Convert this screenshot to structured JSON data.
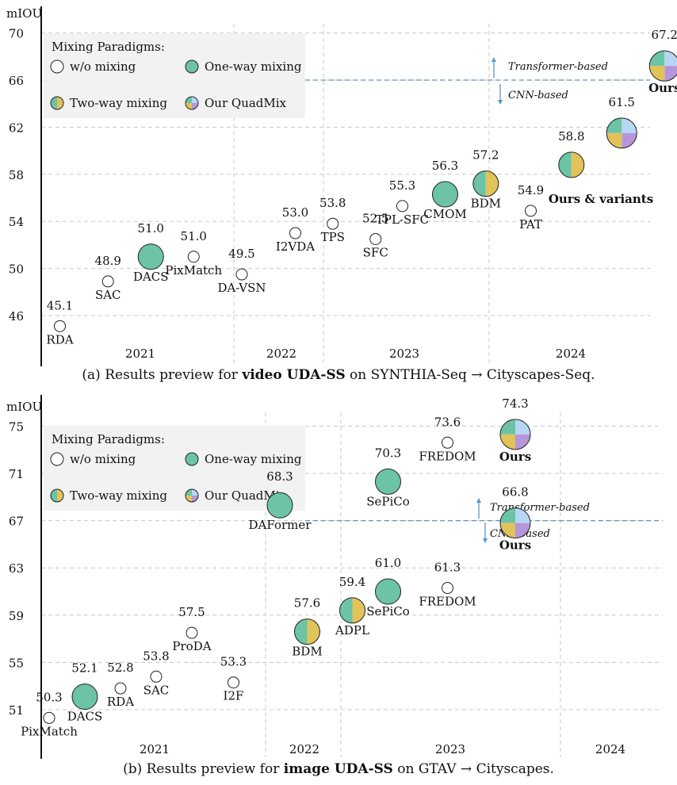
{
  "chart_data": [
    {
      "type": "scatter",
      "ylabel": "mIOU",
      "ylim": [
        42,
        72
      ],
      "y_ticks": [
        46,
        50,
        54,
        58,
        62,
        66,
        70
      ],
      "years": [
        "2021",
        "2022",
        "2023",
        "2024"
      ],
      "legend": {
        "title": "Mixing Paradigms:",
        "items": [
          {
            "kind": "none",
            "label": "w/o mixing"
          },
          {
            "kind": "one",
            "label": "One-way mixing"
          },
          {
            "kind": "two",
            "label": "Two-way mixing"
          },
          {
            "kind": "quad",
            "label": "Our QuadMix"
          }
        ]
      },
      "threshold": {
        "value": 66,
        "above_label": "Transformer-based",
        "below_label": "CNN-based"
      },
      "points": [
        {
          "name": "RDA",
          "year_pos": 0.1,
          "miou": 45.1,
          "kind": "none",
          "value_label": "45.1"
        },
        {
          "name": "SAC",
          "year_pos": 0.55,
          "miou": 48.9,
          "kind": "none",
          "value_label": "48.9"
        },
        {
          "name": "DACS",
          "year_pos": 0.95,
          "miou": 51.0,
          "kind": "one",
          "value_label": "51.0"
        },
        {
          "name": "PixMatch",
          "year_pos": 1.35,
          "miou": 51.0,
          "kind": "none",
          "value_label": "51.0"
        },
        {
          "name": "DA-VSN",
          "year_pos": 1.8,
          "miou": 49.5,
          "kind": "none",
          "value_label": "49.5"
        },
        {
          "name": "I2VDA",
          "year_pos": 2.3,
          "miou": 53.0,
          "kind": "none",
          "value_label": "53.0"
        },
        {
          "name": "TPS",
          "year_pos": 2.65,
          "miou": 53.8,
          "kind": "none",
          "value_label": "53.8"
        },
        {
          "name": "SFC",
          "year_pos": 3.05,
          "miou": 52.5,
          "kind": "none",
          "value_label": "52.5"
        },
        {
          "name": "TPL-SFC",
          "year_pos": 3.3,
          "miou": 55.3,
          "kind": "none",
          "value_label": "55.3"
        },
        {
          "name": "CMOM",
          "year_pos": 3.7,
          "miou": 56.3,
          "kind": "one",
          "value_label": "56.3"
        },
        {
          "name": "BDM",
          "year_pos": 4.08,
          "miou": 57.2,
          "kind": "two",
          "value_label": "57.2"
        },
        {
          "name": "PAT",
          "year_pos": 4.5,
          "miou": 54.9,
          "kind": "none",
          "value_label": "54.9"
        },
        {
          "name": "",
          "year_pos": 4.88,
          "miou": 58.8,
          "kind": "two",
          "value_label": "58.8"
        },
        {
          "name": "",
          "year_pos": 5.35,
          "miou": 61.5,
          "kind": "quad",
          "value_label": "61.5"
        },
        {
          "name": "Ours",
          "year_pos": 5.75,
          "miou": 67.2,
          "kind": "quad",
          "value_label": "67.2"
        }
      ],
      "annotations": [
        {
          "text": "Ours & variants"
        }
      ],
      "caption": {
        "prefix": "(a) Results preview for ",
        "bold": "video UDA-SS",
        "suffix": " on SYNTHIA-Seq → Cityscapes-Seq."
      }
    },
    {
      "type": "scatter",
      "ylabel": "mIOU",
      "ylim": [
        48,
        76
      ],
      "y_ticks": [
        51,
        55,
        59,
        63,
        67,
        71,
        75
      ],
      "years": [
        "2021",
        "2022",
        "2023",
        "2024"
      ],
      "legend": {
        "title": "Mixing Paradigms:",
        "items": [
          {
            "kind": "none",
            "label": "w/o mixing"
          },
          {
            "kind": "one",
            "label": "One-way mixing"
          },
          {
            "kind": "two",
            "label": "Two-way mixing"
          },
          {
            "kind": "quad",
            "label": "Our QuadMix"
          }
        ]
      },
      "threshold": {
        "value": 67,
        "above_label": "Transformer-based",
        "below_label": "CNN-based"
      },
      "points": [
        {
          "name": "PixMatch",
          "year_pos": 0.2,
          "miou": 50.3,
          "kind": "none",
          "value_label": "50.3"
        },
        {
          "name": "DACS",
          "year_pos": 0.5,
          "miou": 52.1,
          "kind": "one",
          "value_label": "52.1"
        },
        {
          "name": "RDA",
          "year_pos": 0.8,
          "miou": 52.8,
          "kind": "none",
          "value_label": "52.8"
        },
        {
          "name": "SAC",
          "year_pos": 1.1,
          "miou": 53.8,
          "kind": "none",
          "value_label": "53.8"
        },
        {
          "name": "ProDA",
          "year_pos": 1.4,
          "miou": 57.5,
          "kind": "none",
          "value_label": "57.5"
        },
        {
          "name": "I2F",
          "year_pos": 1.75,
          "miou": 53.3,
          "kind": "none",
          "value_label": "53.3"
        },
        {
          "name": "DAFormer",
          "year_pos": 2.14,
          "miou": 68.3,
          "kind": "one",
          "value_label": "68.3"
        },
        {
          "name": "BDM",
          "year_pos": 2.37,
          "miou": 57.6,
          "kind": "two",
          "value_label": "57.6"
        },
        {
          "name": "ADPL",
          "year_pos": 2.75,
          "miou": 59.4,
          "kind": "two",
          "value_label": "59.4"
        },
        {
          "name": "SePiCo",
          "year_pos": 3.05,
          "miou": 70.3,
          "kind": "one",
          "value_label": "70.3"
        },
        {
          "name": "SePiCo",
          "year_pos": 3.05,
          "miou": 61.0,
          "kind": "one",
          "value_label": "61.0"
        },
        {
          "name": "FREDOM",
          "year_pos": 3.55,
          "miou": 73.6,
          "kind": "none",
          "value_label": "73.6"
        },
        {
          "name": "FREDOM",
          "year_pos": 3.55,
          "miou": 61.3,
          "kind": "none",
          "value_label": "61.3"
        },
        {
          "name": "Ours",
          "year_pos": 4.12,
          "miou": 74.3,
          "kind": "quad",
          "value_label": "74.3"
        },
        {
          "name": "Ours",
          "year_pos": 4.12,
          "miou": 66.8,
          "kind": "quad",
          "value_label": "66.8"
        }
      ],
      "annotations": [],
      "caption": {
        "prefix": "(b) Results preview for ",
        "bold": "image UDA-SS",
        "suffix": " on GTAV → Cityscapes."
      }
    }
  ],
  "colors": {
    "one_way": "#6cc3a6",
    "two_way": "#e2c35a",
    "quad_a": "#b6d6f3",
    "quad_b": "#b596da",
    "grid": "#c8c8c8",
    "threshold": "#5b95c6",
    "legend_bg": "#f2f2f2"
  }
}
